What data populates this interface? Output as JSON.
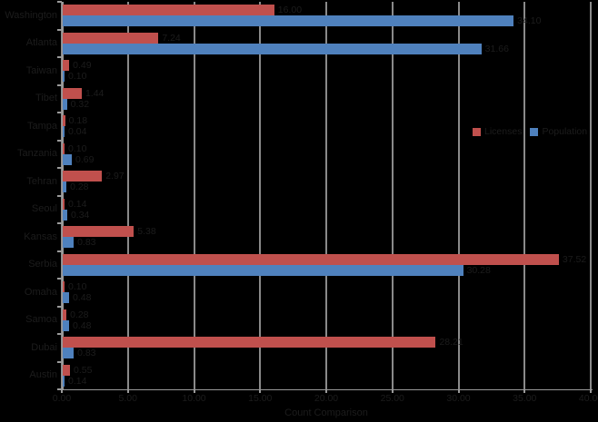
{
  "chart_data": {
    "type": "bar",
    "orientation": "horizontal",
    "title": "",
    "xlabel": "Count Comparison",
    "ylabel": "",
    "xlim": [
      0,
      40
    ],
    "grid": true,
    "data_labels": true,
    "legend_position": "inside-middle-right",
    "x_ticks": [
      "0.00",
      "5.00",
      "10.00",
      "15.00",
      "20.00",
      "25.00",
      "30.00",
      "35.00",
      "40.00"
    ],
    "x_tick_values": [
      0,
      5,
      10,
      15,
      20,
      25,
      30,
      35,
      40
    ],
    "categories": [
      "Washington",
      "Atlanta",
      "Taiwan",
      "Tibet",
      "Tampa",
      "Tanzania",
      "Tehran",
      "Seoul",
      "Kansas",
      "Serbia",
      "Omaha",
      "Samoa",
      "Dubai",
      "Austin"
    ],
    "series": [
      {
        "name": "Licenses",
        "color": "#C0504D",
        "values": [
          16.0,
          7.24,
          0.49,
          1.44,
          0.18,
          0.1,
          2.97,
          0.14,
          5.38,
          37.52,
          0.1,
          0.28,
          28.21,
          0.55
        ]
      },
      {
        "name": "Population",
        "color": "#4F81BD",
        "values": [
          34.1,
          31.66,
          0.1,
          0.32,
          0.04,
          0.69,
          0.28,
          0.34,
          0.83,
          30.28,
          0.48,
          0.48,
          0.83,
          0.14
        ]
      }
    ]
  },
  "colors": {
    "background": "#000000",
    "gridline": "#8a8a8a",
    "axis": "#9a9a9a",
    "text": "#1c1c1c",
    "series_red": "#C0504D",
    "series_blue": "#4F81BD"
  },
  "legend": {
    "items": [
      {
        "label": "Licenses",
        "color": "#C0504D"
      },
      {
        "label": "Population",
        "color": "#4F81BD"
      }
    ]
  }
}
